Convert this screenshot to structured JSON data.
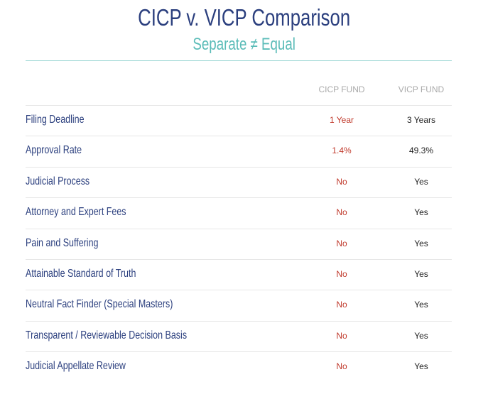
{
  "header": {
    "title": "CICP v. VICP Comparison",
    "subtitle": "Separate ≠ Equal"
  },
  "table": {
    "columns": [
      "CICP FUND",
      "VICP FUND"
    ],
    "rows": [
      [
        "Filing Deadline",
        "1 Year",
        "3 Years"
      ],
      [
        "Approval Rate",
        "1.4%",
        "49.3%"
      ],
      [
        "Judicial Process",
        "No",
        "Yes"
      ],
      [
        "Attorney and Expert Fees",
        "No",
        "Yes"
      ],
      [
        "Pain and Suffering",
        "No",
        "Yes"
      ],
      [
        "Attainable Standard of Truth",
        "No",
        "Yes"
      ],
      [
        "Neutral Fact Finder (Special Masters)",
        "No",
        "Yes"
      ],
      [
        "Transparent / Reviewable Decision Basis",
        "No",
        "Yes"
      ],
      [
        "Judicial Appellate Review",
        "No",
        "Yes"
      ]
    ]
  }
}
